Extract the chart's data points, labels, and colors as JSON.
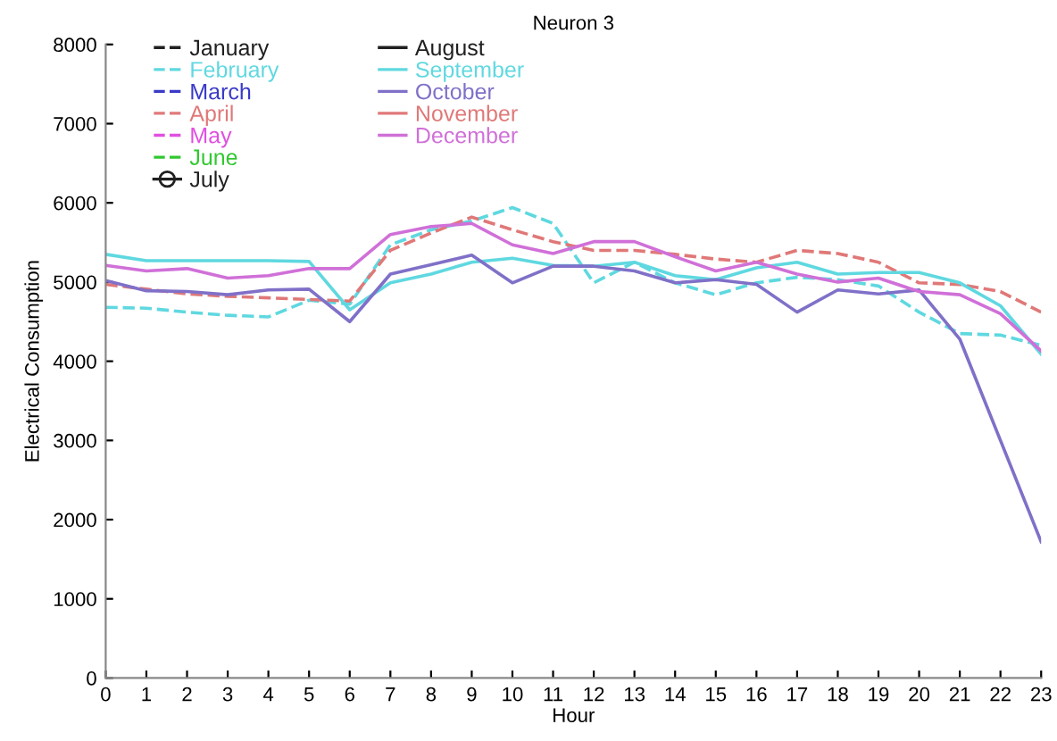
{
  "chart_data": {
    "type": "line",
    "title": "Neuron 3",
    "xlabel": "Hour",
    "ylabel": "Electrical Consumption",
    "x": [
      0,
      1,
      2,
      3,
      4,
      5,
      6,
      7,
      8,
      9,
      10,
      11,
      12,
      13,
      14,
      15,
      16,
      17,
      18,
      19,
      20,
      21,
      22,
      23
    ],
    "xlim": [
      0,
      23
    ],
    "xticks": [
      0,
      1,
      2,
      3,
      4,
      5,
      6,
      7,
      8,
      9,
      10,
      11,
      12,
      13,
      14,
      15,
      16,
      17,
      18,
      19,
      20,
      21,
      22,
      23
    ],
    "ylim": [
      0,
      8000
    ],
    "yticks": [
      0,
      1000,
      2000,
      3000,
      4000,
      5000,
      6000,
      7000,
      8000
    ],
    "grid": false,
    "legend": "top left",
    "series": [
      {
        "name": "January",
        "color": "#202020",
        "line_style": "dashed",
        "marker": "none",
        "values": [
          null,
          null,
          null,
          null,
          null,
          null,
          null,
          null,
          null,
          null,
          null,
          null,
          null,
          null,
          null,
          null,
          null,
          null,
          null,
          null,
          null,
          null,
          null,
          null
        ]
      },
      {
        "name": "February",
        "color": "#5fd8e0",
        "line_style": "dashed",
        "marker": "none",
        "values": [
          4680,
          4670,
          4620,
          4580,
          4560,
          4770,
          4720,
          5470,
          5660,
          5770,
          5940,
          5740,
          4990,
          5250,
          4990,
          4840,
          4990,
          5060,
          5030,
          4950,
          4620,
          4350,
          4330,
          4200
        ]
      },
      {
        "name": "March",
        "color": "#3a3ac8",
        "line_style": "dashed",
        "marker": "none",
        "values": [
          null,
          null,
          null,
          null,
          null,
          null,
          null,
          null,
          null,
          null,
          null,
          null,
          null,
          null,
          null,
          null,
          null,
          null,
          null,
          null,
          null,
          null,
          null,
          null
        ]
      },
      {
        "name": "April",
        "color": "#e07878",
        "line_style": "dashed",
        "marker": "none",
        "values": [
          4970,
          4910,
          4850,
          4820,
          4800,
          4780,
          4760,
          5400,
          5620,
          5820,
          5660,
          5510,
          5400,
          5400,
          5350,
          5290,
          5250,
          5400,
          5360,
          5250,
          4990,
          4970,
          4880,
          4620
        ]
      },
      {
        "name": "May",
        "color": "#e050e0",
        "line_style": "dashed",
        "marker": "none",
        "values": [
          null,
          null,
          null,
          null,
          null,
          null,
          null,
          null,
          null,
          null,
          null,
          null,
          null,
          null,
          null,
          null,
          null,
          null,
          null,
          null,
          null,
          null,
          null,
          null
        ]
      },
      {
        "name": "June",
        "color": "#30c830",
        "line_style": "dashed",
        "marker": "none",
        "values": [
          null,
          null,
          null,
          null,
          null,
          null,
          null,
          null,
          null,
          null,
          null,
          null,
          null,
          null,
          null,
          null,
          null,
          null,
          null,
          null,
          null,
          null,
          null,
          null
        ]
      },
      {
        "name": "July",
        "color": "#202020",
        "line_style": "solid",
        "marker": "circle",
        "values": [
          null,
          null,
          null,
          null,
          null,
          null,
          null,
          null,
          null,
          null,
          null,
          null,
          null,
          null,
          null,
          null,
          null,
          null,
          null,
          null,
          null,
          null,
          null,
          null
        ]
      },
      {
        "name": "August",
        "color": "#202020",
        "line_style": "solid",
        "marker": "none",
        "values": [
          null,
          null,
          null,
          null,
          null,
          null,
          null,
          null,
          null,
          null,
          null,
          null,
          null,
          null,
          null,
          null,
          null,
          null,
          null,
          null,
          null,
          null,
          null,
          null
        ]
      },
      {
        "name": "September",
        "color": "#5fd8e0",
        "line_style": "solid",
        "marker": "none",
        "values": [
          5350,
          5270,
          5270,
          5270,
          5270,
          5260,
          4650,
          4990,
          5100,
          5250,
          5300,
          5210,
          5200,
          5250,
          5080,
          5030,
          5180,
          5250,
          5100,
          5120,
          5120,
          4990,
          4700,
          4090
        ]
      },
      {
        "name": "October",
        "color": "#8070c8",
        "line_style": "solid",
        "marker": "none",
        "values": [
          5020,
          4890,
          4880,
          4840,
          4900,
          4910,
          4500,
          5100,
          5220,
          5340,
          4990,
          5200,
          5200,
          5140,
          4990,
          5030,
          4970,
          4620,
          4900,
          4850,
          4900,
          4280,
          3000,
          1720
        ]
      },
      {
        "name": "November",
        "color": "#e07878",
        "line_style": "solid",
        "marker": "none",
        "values": [
          null,
          null,
          null,
          null,
          null,
          null,
          null,
          null,
          null,
          null,
          null,
          null,
          null,
          null,
          null,
          null,
          null,
          null,
          null,
          null,
          null,
          null,
          null,
          null
        ]
      },
      {
        "name": "December",
        "color": "#d070d8",
        "line_style": "solid",
        "marker": "none",
        "values": [
          5210,
          5140,
          5170,
          5050,
          5080,
          5170,
          5170,
          5600,
          5700,
          5740,
          5470,
          5360,
          5510,
          5510,
          5320,
          5140,
          5250,
          5100,
          5000,
          5050,
          4880,
          4840,
          4600,
          4130
        ]
      }
    ]
  }
}
